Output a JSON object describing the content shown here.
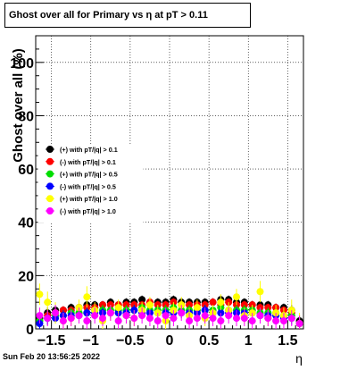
{
  "header": {
    "title": "Ghost over all for Primary vs  η at pT > 0.11"
  },
  "footer": {
    "datestamp": "Sun Feb 20 13:56:25 2022"
  },
  "chart_data": {
    "type": "scatter",
    "title": "Ghost over all for Primary vs  η at pT > 0.11",
    "xlabel": "η",
    "ylabel": "Ghost over all (%)",
    "xlim": [
      -1.7,
      1.7
    ],
    "ylim": [
      0,
      110
    ],
    "xticks": [
      -1.5,
      -1,
      -0.5,
      0,
      0.5,
      1,
      1.5
    ],
    "xtick_labels": [
      "−1.5",
      "−1",
      "−0.5",
      "0",
      "0.5",
      "1",
      "1.5"
    ],
    "yticks": [
      0,
      20,
      40,
      60,
      80,
      100
    ],
    "ytick_labels": [
      "0",
      "20",
      "40",
      "60",
      "80",
      "100"
    ],
    "grid": true,
    "legend_position": "middle-left",
    "series": [
      {
        "name": "(+) with pT/|q| > 0.1",
        "color": "#000000",
        "x": [
          -1.65,
          -1.55,
          -1.45,
          -1.35,
          -1.25,
          -1.15,
          -1.05,
          -0.95,
          -0.85,
          -0.75,
          -0.65,
          -0.55,
          -0.45,
          -0.35,
          -0.25,
          -0.15,
          -0.05,
          0.05,
          0.15,
          0.25,
          0.35,
          0.45,
          0.55,
          0.65,
          0.75,
          0.85,
          0.95,
          1.05,
          1.15,
          1.25,
          1.35,
          1.45,
          1.55,
          1.65
        ],
        "y": [
          4,
          6,
          7,
          7,
          8,
          8,
          9,
          9,
          9,
          10,
          9,
          10,
          10,
          11,
          10,
          10,
          10,
          11,
          10,
          10,
          10,
          10,
          10,
          11,
          11,
          10,
          10,
          9,
          9,
          9,
          8,
          8,
          7,
          3
        ],
        "err": [
          2,
          2,
          2,
          1.5,
          1.5,
          1.5,
          1.5,
          1.5,
          1.5,
          1.5,
          1.5,
          1.5,
          1.5,
          1.5,
          1.5,
          1.5,
          1.5,
          1.5,
          1.5,
          1.5,
          1.5,
          1.5,
          1.5,
          1.5,
          1.5,
          1.5,
          1.5,
          1.5,
          1.5,
          1.5,
          1.5,
          1.5,
          2,
          2
        ]
      },
      {
        "name": "(-) with pT/|q| > 0.1",
        "color": "#ff0000",
        "x": [
          -1.65,
          -1.55,
          -1.45,
          -1.35,
          -1.25,
          -1.15,
          -1.05,
          -0.95,
          -0.85,
          -0.75,
          -0.65,
          -0.55,
          -0.45,
          -0.35,
          -0.25,
          -0.15,
          -0.05,
          0.05,
          0.15,
          0.25,
          0.35,
          0.45,
          0.55,
          0.65,
          0.75,
          0.85,
          0.95,
          1.05,
          1.15,
          1.25,
          1.35,
          1.45,
          1.55,
          1.65
        ],
        "y": [
          3,
          5,
          6,
          7,
          7,
          8,
          8,
          8,
          9,
          9,
          9,
          9,
          9,
          9,
          10,
          9,
          9,
          10,
          9,
          9,
          9,
          9,
          10,
          9,
          10,
          9,
          9,
          9,
          8,
          8,
          8,
          7,
          6,
          2
        ],
        "err": [
          2,
          2,
          2,
          1.5,
          1.5,
          1.5,
          1.5,
          1.5,
          1.5,
          1.5,
          1.5,
          1.5,
          1.5,
          1.5,
          1.5,
          1.5,
          1.5,
          1.5,
          1.5,
          1.5,
          1.5,
          1.5,
          1.5,
          1.5,
          1.5,
          1.5,
          1.5,
          1.5,
          1.5,
          1.5,
          1.5,
          1.5,
          2,
          2
        ]
      },
      {
        "name": "(+) with pT/|q| > 0.5",
        "color": "#00dd00",
        "x": [
          -1.65,
          -1.55,
          -1.45,
          -1.35,
          -1.25,
          -1.15,
          -1.05,
          -0.95,
          -0.85,
          -0.75,
          -0.65,
          -0.55,
          -0.45,
          -0.35,
          -0.25,
          -0.15,
          -0.05,
          0.05,
          0.15,
          0.25,
          0.35,
          0.45,
          0.55,
          0.65,
          0.75,
          0.85,
          0.95,
          1.05,
          1.15,
          1.25,
          1.35,
          1.45,
          1.55,
          1.65
        ],
        "y": [
          3,
          4,
          5,
          5,
          6,
          6,
          6,
          7,
          7,
          7,
          7,
          7,
          7,
          8,
          7,
          7,
          7,
          8,
          7,
          7,
          7,
          7,
          7,
          8,
          7,
          7,
          7,
          7,
          6,
          6,
          6,
          5,
          5,
          2
        ],
        "err": [
          2.5,
          2.5,
          2,
          2,
          2,
          2,
          2,
          2,
          2,
          2,
          2,
          2,
          2,
          2,
          2,
          2,
          2,
          2,
          2,
          2,
          2,
          2,
          2,
          2,
          2,
          2,
          2,
          2,
          2,
          2,
          2,
          2,
          2.5,
          2.5
        ]
      },
      {
        "name": "(-) with pT/|q| > 0.5",
        "color": "#0000ff",
        "x": [
          -1.65,
          -1.55,
          -1.45,
          -1.35,
          -1.25,
          -1.15,
          -1.05,
          -0.95,
          -0.85,
          -0.75,
          -0.65,
          -0.55,
          -0.45,
          -0.35,
          -0.25,
          -0.15,
          -0.05,
          0.05,
          0.15,
          0.25,
          0.35,
          0.45,
          0.55,
          0.65,
          0.75,
          0.85,
          0.95,
          1.05,
          1.15,
          1.25,
          1.35,
          1.45,
          1.55,
          1.65
        ],
        "y": [
          2,
          4,
          4,
          5,
          5,
          5,
          6,
          6,
          6,
          6,
          6,
          6,
          7,
          6,
          6,
          6,
          6,
          6,
          6,
          6,
          6,
          7,
          6,
          6,
          6,
          6,
          6,
          6,
          5,
          5,
          5,
          4,
          4,
          2
        ],
        "err": [
          2.5,
          2.5,
          2,
          2,
          2,
          2,
          2,
          2,
          2,
          2,
          2,
          2,
          2,
          2,
          2,
          2,
          2,
          2,
          2,
          2,
          2,
          2,
          2,
          2,
          2,
          2,
          2,
          2,
          2,
          2,
          2,
          2,
          2.5,
          2.5
        ]
      },
      {
        "name": "(+) with pT/|q| > 1.0",
        "color": "#ffff00",
        "x": [
          -1.65,
          -1.55,
          -1.45,
          -1.35,
          -1.25,
          -1.15,
          -1.05,
          -0.95,
          -0.85,
          -0.75,
          -0.65,
          -0.55,
          -0.45,
          -0.35,
          -0.25,
          -0.15,
          -0.05,
          0.05,
          0.15,
          0.25,
          0.35,
          0.45,
          0.55,
          0.65,
          0.75,
          0.85,
          0.95,
          1.05,
          1.15,
          1.25,
          1.35,
          1.45,
          1.55,
          1.65
        ],
        "y": [
          13,
          10,
          6,
          3,
          4,
          8,
          12,
          7,
          3,
          6,
          8,
          5,
          4,
          7,
          9,
          6,
          3,
          7,
          9,
          5,
          8,
          4,
          6,
          10,
          7,
          12,
          5,
          6,
          14,
          4,
          6,
          5,
          7,
          2
        ],
        "err": [
          4,
          4,
          4,
          3,
          3,
          3,
          4,
          3,
          3,
          3,
          3,
          3,
          3,
          3,
          3,
          3,
          3,
          3,
          3,
          3,
          3,
          3,
          3,
          3,
          3,
          3,
          3,
          3,
          4,
          3,
          3,
          3,
          4,
          4
        ]
      },
      {
        "name": "(-) with pT/|q| > 1.0",
        "color": "#ff00ff",
        "x": [
          -1.65,
          -1.55,
          -1.45,
          -1.35,
          -1.25,
          -1.15,
          -1.05,
          -0.95,
          -0.85,
          -0.75,
          -0.65,
          -0.55,
          -0.45,
          -0.35,
          -0.25,
          -0.15,
          -0.05,
          0.05,
          0.15,
          0.25,
          0.35,
          0.45,
          0.55,
          0.65,
          0.75,
          0.85,
          0.95,
          1.05,
          1.15,
          1.25,
          1.35,
          1.45,
          1.55,
          1.65
        ],
        "y": [
          5,
          4,
          6,
          3,
          4,
          5,
          3,
          5,
          4,
          6,
          3,
          5,
          4,
          5,
          4,
          3,
          5,
          4,
          6,
          3,
          4,
          5,
          4,
          3,
          5,
          4,
          4,
          3,
          5,
          4,
          3,
          3,
          4,
          2
        ],
        "err": [
          3,
          3,
          3,
          3,
          3,
          3,
          3,
          3,
          3,
          3,
          3,
          3,
          3,
          3,
          3,
          3,
          3,
          3,
          3,
          3,
          3,
          3,
          3,
          3,
          3,
          3,
          3,
          3,
          3,
          3,
          3,
          3,
          3,
          3
        ]
      }
    ]
  }
}
